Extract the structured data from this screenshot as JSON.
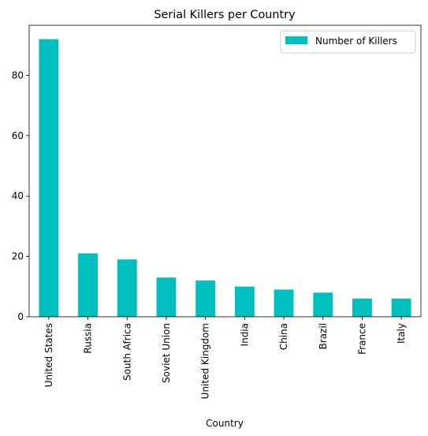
{
  "chart_data": {
    "type": "bar",
    "title": "Serial Killers per Country",
    "xlabel": "Country",
    "ylabel": "",
    "categories": [
      "United States",
      "Russia",
      "South Africa",
      "Soviet Union",
      "United Kingdom",
      "India",
      "China",
      "Brazil",
      "France",
      "Italy"
    ],
    "series": [
      {
        "name": "Number of Killers",
        "values": [
          92,
          21,
          19,
          13,
          12,
          10,
          9,
          8,
          6,
          6
        ],
        "color": "#00bfbf"
      }
    ],
    "ylim": [
      0,
      96.6
    ],
    "yticks": [
      0,
      20,
      40,
      60,
      80
    ],
    "grid": false,
    "legend_position": "top-right"
  }
}
